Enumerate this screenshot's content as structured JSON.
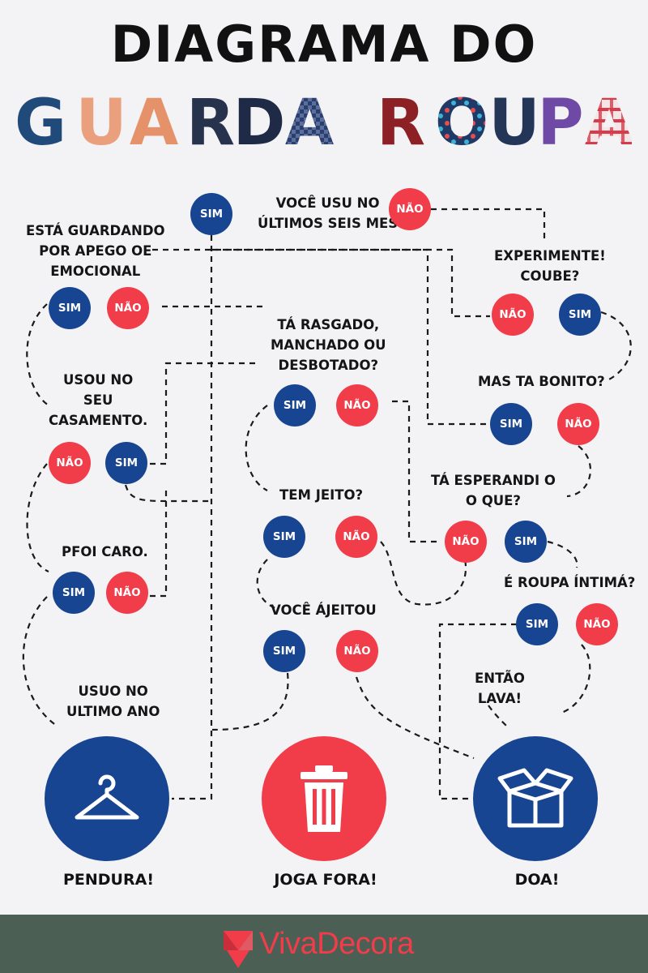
{
  "header": {
    "title": "DIAGRAMA DO",
    "subtitle": "GUARDA ROUPA"
  },
  "questions": [
    {
      "id": "q-ultimos-seis-meses",
      "text": "VOCÊ USU NO\nÚLTIMOS SEIS MES"
    },
    {
      "id": "q-apego-emocional",
      "text": "ESTÁ GUARDANDO\nPOR APEGO OE\nEMOCIONAL"
    },
    {
      "id": "q-experimente",
      "text": "EXPERIMENTE!\nCOUBE?"
    },
    {
      "id": "q-rasgado",
      "text": "TÁ RASGADO,\nMANCHADO OU\nDESBOTADO?"
    },
    {
      "id": "q-casamento",
      "text": "USOU NO\nSEU\nCASAMENTO."
    },
    {
      "id": "q-bonito",
      "text": "MAS TA BONITO?"
    },
    {
      "id": "q-jeito",
      "text": "TEM JEITO?"
    },
    {
      "id": "q-esperando",
      "text": "TÁ ESPERANDI O\nO QUE?"
    },
    {
      "id": "q-caro",
      "text": "PFOI CARO."
    },
    {
      "id": "q-intima",
      "text": "É ROUPA ÍNTIMÁ?"
    },
    {
      "id": "q-ajeitou",
      "text": "VOCÊ ÁJEITOU"
    },
    {
      "id": "q-lava",
      "text": "ENTÃO\nLAVA!"
    },
    {
      "id": "q-ultimo-ano",
      "text": "USUO NO\nULTIMO ANO"
    }
  ],
  "answers": {
    "yes": "SIM",
    "no": "NÃO"
  },
  "outcomes": {
    "pendura": "PENDURA!",
    "joga_fora": "JOGA FORA!",
    "doa": "DOA!"
  },
  "icons": {
    "pendura": "hanger-icon",
    "joga_fora": "trash-icon",
    "doa": "box-icon"
  },
  "colors": {
    "yes": "#174591",
    "no": "#f13d49",
    "background": "#f3f2f4",
    "footer": "#4b5f54",
    "brand": "#f13d49"
  },
  "footer": {
    "brand": "VivaDecora"
  }
}
